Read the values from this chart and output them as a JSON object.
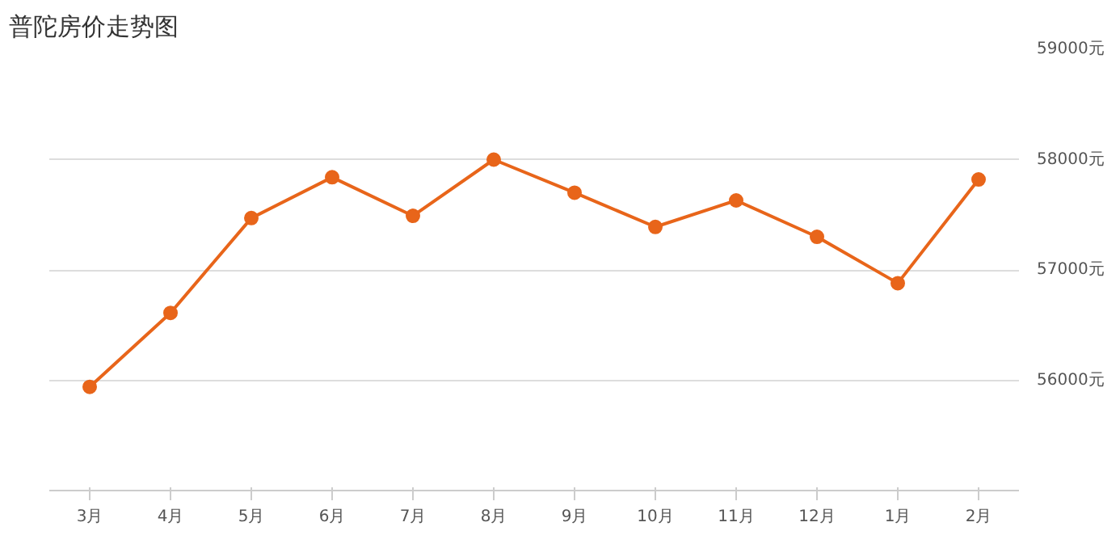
{
  "chart_data": {
    "type": "line",
    "title": "普陀房价走势图",
    "categories": [
      "3月",
      "4月",
      "5月",
      "6月",
      "7月",
      "8月",
      "9月",
      "10月",
      "11月",
      "12月",
      "1月",
      "2月"
    ],
    "series": [
      {
        "color": "#e8651a",
        "values": [
          55940,
          56610,
          57470,
          57840,
          57490,
          58000,
          57700,
          57390,
          57630,
          57300,
          56880,
          57820
        ]
      }
    ],
    "ylim": [
      55000,
      59000
    ],
    "yticks": [
      {
        "value": 56000,
        "label": "56000元"
      },
      {
        "value": 57000,
        "label": "57000元"
      },
      {
        "value": 58000,
        "label": "58000元"
      },
      {
        "value": 59000,
        "label": "59000元"
      }
    ],
    "grid": "y",
    "marker": "circle",
    "line_style": "solid"
  }
}
